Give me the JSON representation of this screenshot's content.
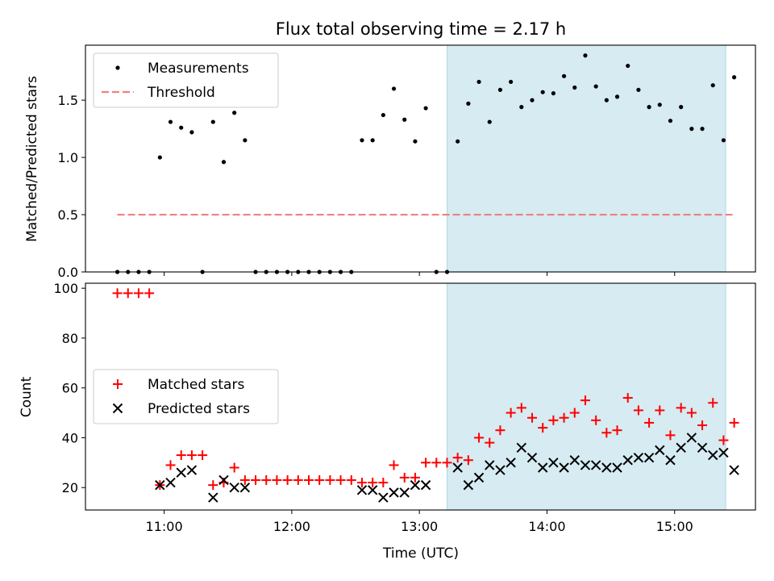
{
  "chart_data": [
    {
      "type": "scatter",
      "title": "Flux total observing time = 2.17 h",
      "ylabel": "Matched/Predicted stars",
      "xlabel": "",
      "xlim": [
        "10:23",
        "15:38"
      ],
      "ylim": [
        0,
        1.98
      ],
      "yticks": [
        0.0,
        0.5,
        1.0,
        1.5
      ],
      "ytick_labels": [
        "0.0",
        "0.5",
        "1.0",
        "1.5"
      ],
      "legend_position": "upper-left",
      "shaded_interval": {
        "start": "13:13",
        "end": "15:24",
        "color": "#add8e6"
      },
      "series": [
        {
          "name": "Measurements",
          "marker": "dot",
          "color": "#000000",
          "points": [
            [
              "10:38",
              0
            ],
            [
              "10:43",
              0
            ],
            [
              "10:48",
              0
            ],
            [
              "10:53",
              0
            ],
            [
              "10:58",
              1.0
            ],
            [
              "11:03",
              1.31
            ],
            [
              "11:08",
              1.26
            ],
            [
              "11:13",
              1.22
            ],
            [
              "11:18",
              0
            ],
            [
              "11:23",
              1.31
            ],
            [
              "11:28",
              0.96
            ],
            [
              "11:33",
              1.39
            ],
            [
              "11:38",
              1.15
            ],
            [
              "11:43",
              0
            ],
            [
              "11:48",
              0
            ],
            [
              "11:53",
              0
            ],
            [
              "11:58",
              0
            ],
            [
              "12:03",
              0
            ],
            [
              "12:08",
              0
            ],
            [
              "12:13",
              0
            ],
            [
              "12:18",
              0
            ],
            [
              "12:23",
              0
            ],
            [
              "12:28",
              0
            ],
            [
              "12:33",
              1.15
            ],
            [
              "12:38",
              1.15
            ],
            [
              "12:43",
              1.37
            ],
            [
              "12:48",
              1.6
            ],
            [
              "12:53",
              1.33
            ],
            [
              "12:58",
              1.14
            ],
            [
              "13:03",
              1.43
            ],
            [
              "13:08",
              0
            ],
            [
              "13:13",
              0
            ],
            [
              "13:18",
              1.14
            ],
            [
              "13:23",
              1.47
            ],
            [
              "13:28",
              1.66
            ],
            [
              "13:33",
              1.31
            ],
            [
              "13:38",
              1.59
            ],
            [
              "13:43",
              1.66
            ],
            [
              "13:48",
              1.44
            ],
            [
              "13:53",
              1.5
            ],
            [
              "13:58",
              1.57
            ],
            [
              "14:03",
              1.56
            ],
            [
              "14:08",
              1.71
            ],
            [
              "14:13",
              1.61
            ],
            [
              "14:18",
              1.89
            ],
            [
              "14:23",
              1.62
            ],
            [
              "14:28",
              1.5
            ],
            [
              "14:33",
              1.53
            ],
            [
              "14:38",
              1.8
            ],
            [
              "14:43",
              1.59
            ],
            [
              "14:48",
              1.44
            ],
            [
              "14:53",
              1.46
            ],
            [
              "14:58",
              1.32
            ],
            [
              "15:03",
              1.44
            ],
            [
              "15:08",
              1.25
            ],
            [
              "15:13",
              1.25
            ],
            [
              "15:18",
              1.63
            ],
            [
              "15:23",
              1.15
            ],
            [
              "15:28",
              1.7
            ]
          ]
        },
        {
          "name": "Threshold",
          "type": "line",
          "style": "dashed",
          "color": "#f08080",
          "points": [
            [
              "10:38",
              0.5
            ],
            [
              "15:28",
              0.5
            ]
          ]
        }
      ]
    },
    {
      "type": "scatter",
      "title": "",
      "ylabel": "Count",
      "xlabel": "Time (UTC)",
      "xlim": [
        "10:23",
        "15:38"
      ],
      "ylim": [
        11,
        102
      ],
      "yticks": [
        20,
        40,
        60,
        80,
        100
      ],
      "ytick_labels": [
        "20",
        "40",
        "60",
        "80",
        "100"
      ],
      "xticks": [
        "11:00",
        "12:00",
        "13:00",
        "14:00",
        "15:00"
      ],
      "xtick_labels": [
        "11:00",
        "12:00",
        "13:00",
        "14:00",
        "15:00"
      ],
      "legend_position": "center-left",
      "shaded_interval": {
        "start": "13:13",
        "end": "15:24",
        "color": "#add8e6"
      },
      "series": [
        {
          "name": "Matched stars",
          "marker": "plus",
          "color": "#ff0000",
          "points": [
            [
              "10:38",
              98
            ],
            [
              "10:43",
              98
            ],
            [
              "10:48",
              98
            ],
            [
              "10:53",
              98
            ],
            [
              "10:58",
              21
            ],
            [
              "11:03",
              29
            ],
            [
              "11:08",
              33
            ],
            [
              "11:13",
              33
            ],
            [
              "11:18",
              33
            ],
            [
              "11:23",
              21
            ],
            [
              "11:28",
              22
            ],
            [
              "11:33",
              28
            ],
            [
              "11:38",
              23
            ],
            [
              "11:43",
              23
            ],
            [
              "11:48",
              23
            ],
            [
              "11:53",
              23
            ],
            [
              "11:58",
              23
            ],
            [
              "12:03",
              23
            ],
            [
              "12:08",
              23
            ],
            [
              "12:13",
              23
            ],
            [
              "12:18",
              23
            ],
            [
              "12:23",
              23
            ],
            [
              "12:28",
              23
            ],
            [
              "12:33",
              22
            ],
            [
              "12:38",
              22
            ],
            [
              "12:43",
              22
            ],
            [
              "12:48",
              29
            ],
            [
              "12:53",
              24
            ],
            [
              "12:58",
              24
            ],
            [
              "13:03",
              30
            ],
            [
              "13:08",
              30
            ],
            [
              "13:13",
              30
            ],
            [
              "13:18",
              32
            ],
            [
              "13:23",
              31
            ],
            [
              "13:28",
              40
            ],
            [
              "13:33",
              38
            ],
            [
              "13:38",
              43
            ],
            [
              "13:43",
              50
            ],
            [
              "13:48",
              52
            ],
            [
              "13:53",
              48
            ],
            [
              "13:58",
              44
            ],
            [
              "14:03",
              47
            ],
            [
              "14:08",
              48
            ],
            [
              "14:13",
              50
            ],
            [
              "14:18",
              55
            ],
            [
              "14:23",
              47
            ],
            [
              "14:28",
              42
            ],
            [
              "14:33",
              43
            ],
            [
              "14:38",
              56
            ],
            [
              "14:43",
              51
            ],
            [
              "14:48",
              46
            ],
            [
              "14:53",
              51
            ],
            [
              "14:58",
              41
            ],
            [
              "15:03",
              52
            ],
            [
              "15:08",
              50
            ],
            [
              "15:13",
              45
            ],
            [
              "15:18",
              54
            ],
            [
              "15:23",
              39
            ],
            [
              "15:28",
              46
            ]
          ]
        },
        {
          "name": "Predicted stars",
          "marker": "x",
          "color": "#000000",
          "points": [
            [
              "10:58",
              21
            ],
            [
              "11:03",
              22
            ],
            [
              "11:08",
              26
            ],
            [
              "11:13",
              27
            ],
            [
              "11:23",
              16
            ],
            [
              "11:28",
              23
            ],
            [
              "11:33",
              20
            ],
            [
              "11:38",
              20
            ],
            [
              "12:33",
              19
            ],
            [
              "12:38",
              19
            ],
            [
              "12:43",
              16
            ],
            [
              "12:48",
              18
            ],
            [
              "12:53",
              18
            ],
            [
              "12:58",
              21
            ],
            [
              "13:03",
              21
            ],
            [
              "13:18",
              28
            ],
            [
              "13:23",
              21
            ],
            [
              "13:28",
              24
            ],
            [
              "13:33",
              29
            ],
            [
              "13:38",
              27
            ],
            [
              "13:43",
              30
            ],
            [
              "13:48",
              36
            ],
            [
              "13:53",
              32
            ],
            [
              "13:58",
              28
            ],
            [
              "14:03",
              30
            ],
            [
              "14:08",
              28
            ],
            [
              "14:13",
              31
            ],
            [
              "14:18",
              29
            ],
            [
              "14:23",
              29
            ],
            [
              "14:28",
              28
            ],
            [
              "14:33",
              28
            ],
            [
              "14:38",
              31
            ],
            [
              "14:43",
              32
            ],
            [
              "14:48",
              32
            ],
            [
              "14:53",
              35
            ],
            [
              "14:58",
              31
            ],
            [
              "15:03",
              36
            ],
            [
              "15:08",
              40
            ],
            [
              "15:13",
              36
            ],
            [
              "15:18",
              33
            ],
            [
              "15:23",
              34
            ],
            [
              "15:28",
              27
            ]
          ]
        }
      ]
    }
  ]
}
